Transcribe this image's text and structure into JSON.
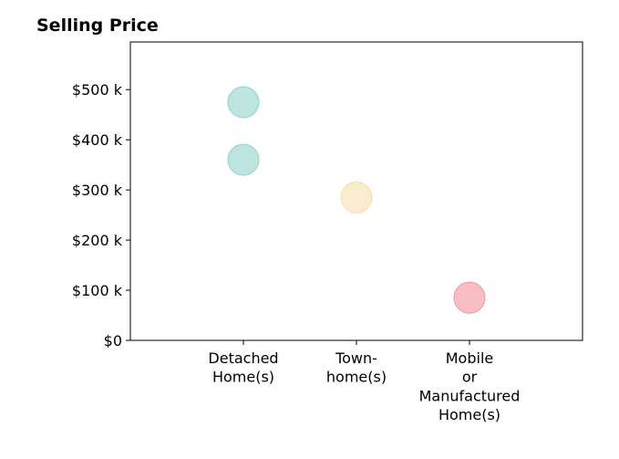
{
  "chart_data": {
    "type": "scatter",
    "title": "Selling Price",
    "xlabel": "",
    "ylabel": "",
    "categories": [
      [
        "Detached",
        "Home(s)"
      ],
      [
        "Town-",
        "home(s)"
      ],
      [
        "Mobile",
        "or",
        "Manufactured",
        "Home(s)"
      ]
    ],
    "ylim": [
      0,
      595000
    ],
    "yticks": [
      0,
      100000,
      200000,
      300000,
      400000,
      500000
    ],
    "ytick_labels": [
      "$0",
      "$100 k",
      "$200 k",
      "$300 k",
      "$400 k",
      "$500 k"
    ],
    "grid": false,
    "points": [
      {
        "category": 0,
        "y": 475000,
        "color": "#8fd3cb"
      },
      {
        "category": 0,
        "y": 360000,
        "color": "#8fd3cb"
      },
      {
        "category": 1,
        "y": 285000,
        "color": "#f7dfae"
      },
      {
        "category": 2,
        "y": 85000,
        "color": "#f4939b"
      }
    ]
  }
}
